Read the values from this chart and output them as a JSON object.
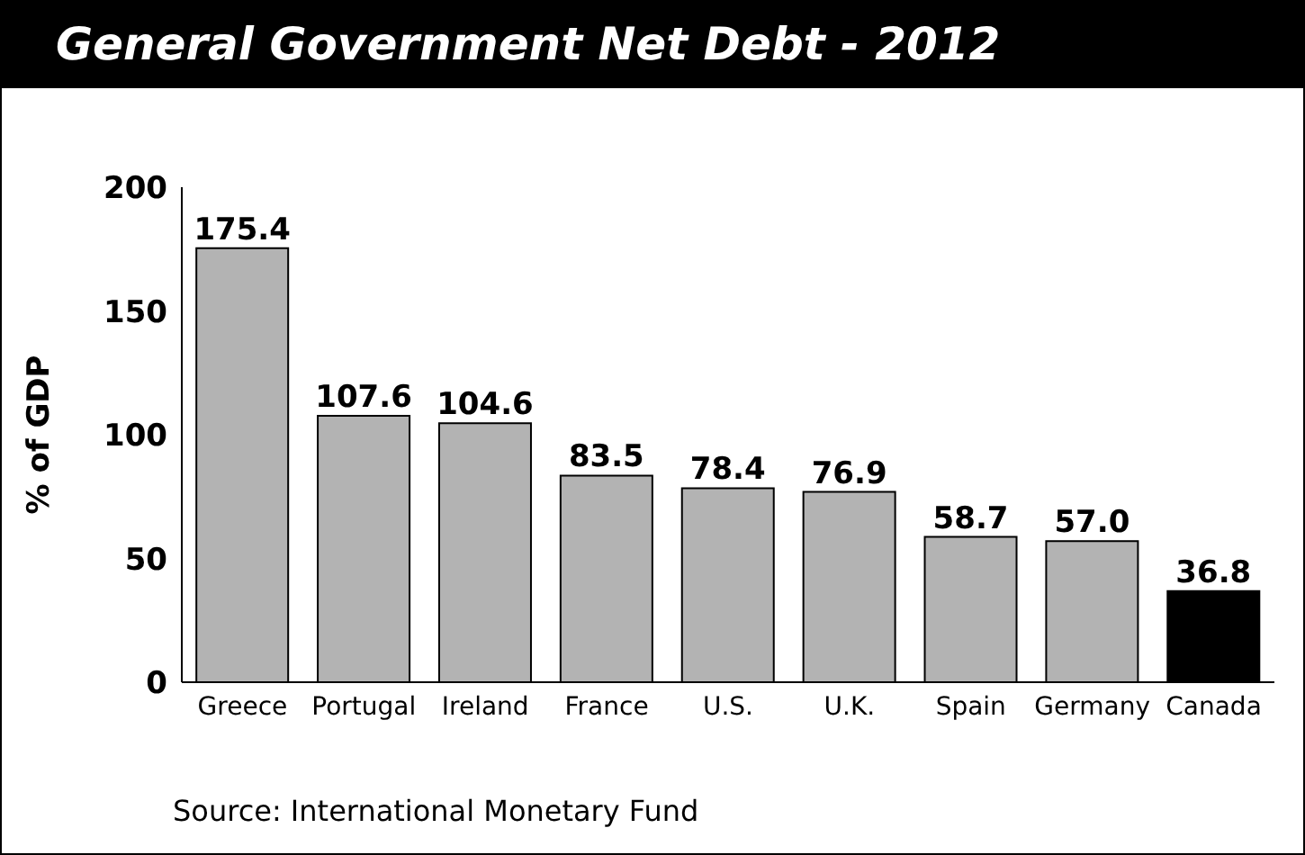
{
  "chart_data": {
    "type": "bar",
    "title": "General Government Net Debt - 2012",
    "ylabel": "% of GDP",
    "categories": [
      "Greece",
      "Portugal",
      "Ireland",
      "France",
      "U.S.",
      "U.K.",
      "Spain",
      "Germany",
      "Canada"
    ],
    "values": [
      175.4,
      107.6,
      104.6,
      83.5,
      78.4,
      76.9,
      58.7,
      57.0,
      36.8
    ],
    "value_labels": [
      "175.4",
      "107.6",
      "104.6",
      "83.5",
      "78.4",
      "76.9",
      "58.7",
      "57.0",
      "36.8"
    ],
    "colors": [
      "#b3b3b3",
      "#b3b3b3",
      "#b3b3b3",
      "#b3b3b3",
      "#b3b3b3",
      "#b3b3b3",
      "#b3b3b3",
      "#b3b3b3",
      "#000000"
    ],
    "ylim": [
      0,
      200
    ],
    "yticks": [
      0,
      50,
      100,
      150,
      200
    ],
    "grid": false,
    "annotations": [
      "Source: International Monetary Fund"
    ]
  }
}
